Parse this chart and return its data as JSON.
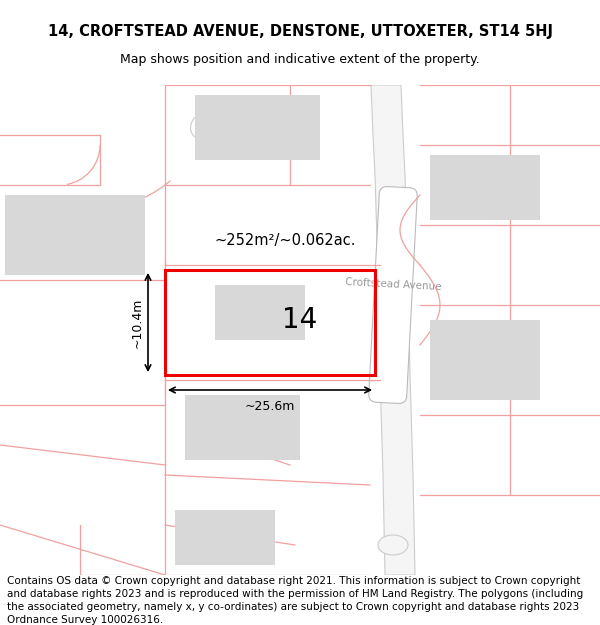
{
  "title": "14, CROFTSTEAD AVENUE, DENSTONE, UTTOXETER, ST14 5HJ",
  "subtitle": "Map shows position and indicative extent of the property.",
  "footer": "Contains OS data © Crown copyright and database right 2021. This information is subject to Crown copyright and database rights 2023 and is reproduced with the permission of HM Land Registry. The polygons (including the associated geometry, namely x, y co-ordinates) are subject to Crown copyright and database rights 2023 Ordnance Survey 100026316.",
  "bg_color": "#ffffff",
  "map_bg": "#ffffff",
  "building_fill": "#d8d8d8",
  "boundary_color": "#f0a0a0",
  "highlight_color": "#ee0000",
  "road_fill": "#ffffff",
  "road_border": "#cccccc",
  "street_label": "Croftstead Avenue",
  "area_label": "~252m²/~0.062ac.",
  "width_label": "~25.6m",
  "height_label": "~10.4m",
  "plot_number": "14",
  "title_fontsize": 10.5,
  "subtitle_fontsize": 9,
  "footer_fontsize": 7.5
}
